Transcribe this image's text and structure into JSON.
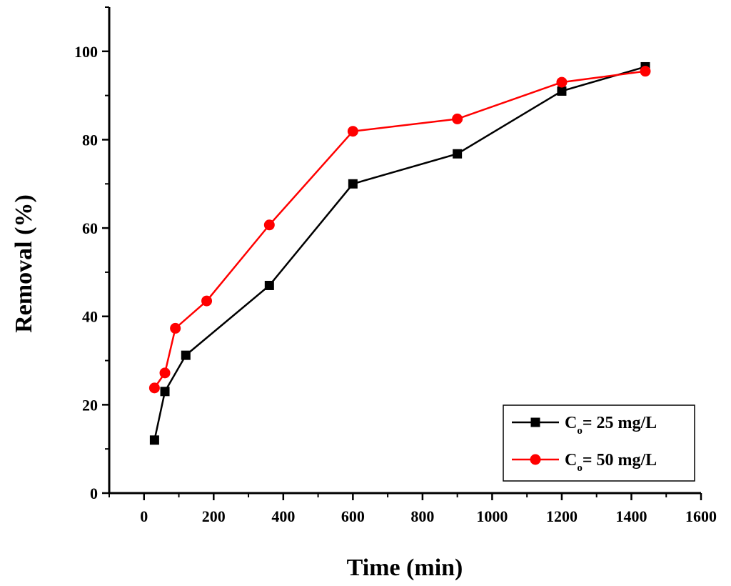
{
  "chart_data": {
    "type": "line",
    "title": "",
    "xlabel": "Time (min)",
    "ylabel": "Removal (%)",
    "xlim": [
      -100,
      1600
    ],
    "ylim": [
      0,
      110
    ],
    "xticks": [
      0,
      200,
      400,
      600,
      800,
      1000,
      1200,
      1400,
      1600
    ],
    "yticks": [
      0,
      20,
      40,
      60,
      80,
      100
    ],
    "grid": false,
    "legend_position": "bottom-right",
    "series": [
      {
        "name": "Co= 25 mg/L",
        "legend_main": "C",
        "legend_sub": "o",
        "legend_rest": "= 25 mg/L",
        "color": "#000000",
        "marker": "square",
        "x": [
          30,
          60,
          120,
          360,
          600,
          900,
          1200,
          1440
        ],
        "y": [
          12,
          23,
          31.2,
          47,
          70,
          76.8,
          91,
          96.5
        ]
      },
      {
        "name": "Co= 50 mg/L",
        "legend_main": "C",
        "legend_sub": "o",
        "legend_rest": "= 50 mg/L",
        "color": "#ff0000",
        "marker": "circle",
        "x": [
          30,
          60,
          90,
          180,
          360,
          600,
          900,
          1200,
          1440
        ],
        "y": [
          23.8,
          27.2,
          37.3,
          43.5,
          60.7,
          81.9,
          84.7,
          93,
          95.5
        ]
      }
    ]
  }
}
